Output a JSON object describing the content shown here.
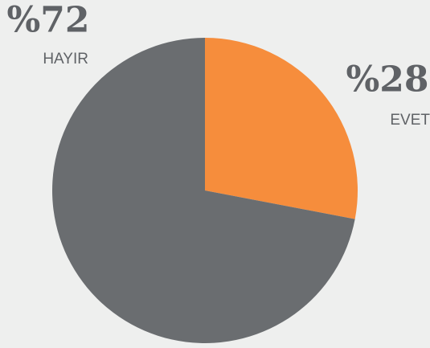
{
  "chart_data": {
    "type": "pie",
    "categories": [
      "EVET",
      "HAYIR"
    ],
    "values": [
      28,
      72
    ],
    "value_labels": [
      "%28",
      "%72"
    ],
    "colors": [
      "#f68d3c",
      "#6a6d70"
    ]
  }
}
